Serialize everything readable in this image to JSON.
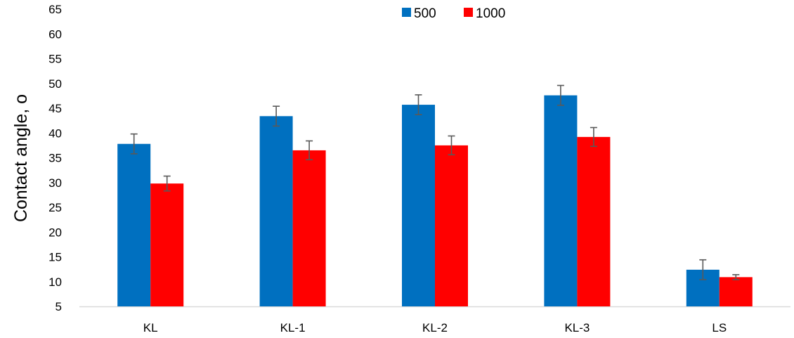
{
  "chart_data": {
    "type": "bar",
    "title": "",
    "xlabel": "",
    "ylabel": "Contact angle, o",
    "ylim": [
      5,
      65
    ],
    "yticks": [
      5,
      10,
      15,
      20,
      25,
      30,
      35,
      40,
      45,
      50,
      55,
      60,
      65
    ],
    "grid": false,
    "legend_position": "top-center",
    "categories": [
      "KL",
      "KL-1",
      "KL-2",
      "KL-3",
      "LS"
    ],
    "series": [
      {
        "name": "500",
        "color": "#0070C0",
        "values": [
          37.8,
          43.4,
          45.7,
          47.6,
          12.4
        ],
        "errors": [
          2.0,
          2.0,
          2.0,
          2.0,
          2.0
        ]
      },
      {
        "name": "1000",
        "color": "#FF0000",
        "values": [
          29.8,
          36.5,
          37.5,
          39.2,
          10.9
        ],
        "errors": [
          1.5,
          1.9,
          1.9,
          1.9,
          0.5
        ]
      }
    ],
    "error_bar_color": "#595959",
    "axis_color": "#D9D9D9"
  }
}
